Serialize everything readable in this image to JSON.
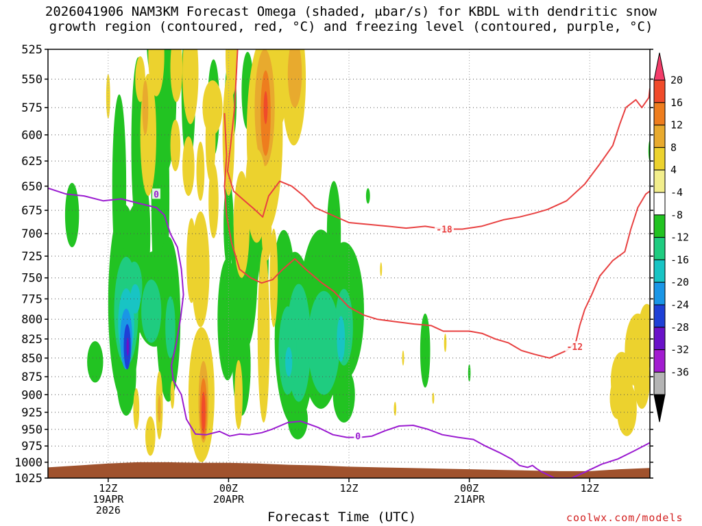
{
  "title": {
    "line1": "2026041906 NAM3KM Forecast Omega (shaded, μbar/s) for KBDL with dendritic snow",
    "line2": "growth region (contoured, red, °C) and freezing level (contoured, purple, °C)"
  },
  "chart_data": {
    "type": "contour",
    "title": "2026041906 NAM3KM Forecast Omega (shaded, μbar/s) for KBDL with dendritic snow growth region (contoured, red, °C) and freezing level (contoured, purple, °C)",
    "xlabel": "Forecast Time (UTC)",
    "ylabel": "Pressure (hPa)",
    "x_range_hours": [
      0,
      60
    ],
    "y_range_hpa": [
      525,
      1025
    ],
    "y_ticks": [
      525,
      550,
      575,
      600,
      625,
      650,
      675,
      700,
      725,
      750,
      775,
      800,
      825,
      850,
      875,
      900,
      925,
      950,
      975,
      1000,
      1025
    ],
    "x_ticks": [
      {
        "hour": 6,
        "l1": "12Z",
        "l2": "19APR",
        "l3": "2026"
      },
      {
        "hour": 18,
        "l1": "00Z",
        "l2": "20APR",
        "l3": ""
      },
      {
        "hour": 30,
        "l1": "12Z",
        "l2": "",
        "l3": ""
      },
      {
        "hour": 42,
        "l1": "00Z",
        "l2": "21APR",
        "l3": ""
      },
      {
        "hour": 54,
        "l1": "12Z",
        "l2": "",
        "l3": ""
      }
    ],
    "colorbar": {
      "labels": [
        "20",
        "16",
        "12",
        "8",
        "4",
        "-4",
        "-8",
        "-12",
        "-16",
        "-20",
        "-24",
        "-28",
        "-32",
        "-36"
      ],
      "colors": [
        "#f43d6a",
        "#f04b2a",
        "#ee7d1e",
        "#e8aa2e",
        "#ecd22e",
        "#f2ee8c",
        "#ffffff",
        "#22c322",
        "#1fcc80",
        "#18c4c4",
        "#1a96e6",
        "#1e40d6",
        "#6a12c8",
        "#a21cd0",
        "#b4b4b4",
        "#000000"
      ]
    },
    "contour_labels": [
      {
        "text": "-18",
        "hour": 39.5,
        "hpa": 695,
        "color": "#e84040"
      },
      {
        "text": "-12",
        "hour": 52.5,
        "hpa": 835,
        "color": "#e84040"
      },
      {
        "text": "0",
        "hour": 10.8,
        "hpa": 658,
        "color": "#9a1ad0"
      },
      {
        "text": "0",
        "hour": 30.9,
        "hpa": 960,
        "color": "#9a1ad0"
      }
    ],
    "dgz_upper_minus18": [
      [
        18.9,
        525
      ],
      [
        18.6,
        575
      ],
      [
        18.2,
        610
      ],
      [
        17.9,
        635
      ],
      [
        18.5,
        655
      ],
      [
        19.6,
        665
      ],
      [
        20.6,
        674
      ],
      [
        21.4,
        682
      ],
      [
        22.0,
        660
      ],
      [
        23.1,
        645
      ],
      [
        24.3,
        650
      ],
      [
        25.5,
        660
      ],
      [
        26.6,
        672
      ],
      [
        28.3,
        680
      ],
      [
        30.0,
        688
      ],
      [
        32.0,
        690
      ],
      [
        33.9,
        692
      ],
      [
        35.7,
        694
      ],
      [
        37.6,
        692
      ],
      [
        39.5,
        695
      ],
      [
        41.3,
        695
      ],
      [
        43.2,
        692
      ],
      [
        45.4,
        685
      ],
      [
        47.0,
        682
      ],
      [
        48.5,
        678
      ],
      [
        49.8,
        674
      ],
      [
        51.7,
        665
      ],
      [
        53.5,
        648
      ],
      [
        55.0,
        628
      ],
      [
        56.3,
        610
      ],
      [
        57.0,
        590
      ],
      [
        57.6,
        575
      ],
      [
        58.6,
        568
      ],
      [
        59.2,
        575
      ],
      [
        59.9,
        566
      ],
      [
        60.0,
        558
      ]
    ],
    "dgz_lower_minus12": [
      [
        17.6,
        580
      ],
      [
        17.8,
        620
      ],
      [
        17.6,
        650
      ],
      [
        17.8,
        680
      ],
      [
        18.3,
        710
      ],
      [
        19.1,
        740
      ],
      [
        20.2,
        750
      ],
      [
        21.3,
        756
      ],
      [
        22.4,
        752
      ],
      [
        23.4,
        740
      ],
      [
        24.6,
        728
      ],
      [
        25.7,
        740
      ],
      [
        27.2,
        755
      ],
      [
        28.5,
        766
      ],
      [
        30.0,
        785
      ],
      [
        31.5,
        795
      ],
      [
        32.8,
        800
      ],
      [
        34.6,
        803
      ],
      [
        36.5,
        806
      ],
      [
        38.2,
        808
      ],
      [
        39.4,
        815
      ],
      [
        40.7,
        815
      ],
      [
        42.0,
        815
      ],
      [
        43.3,
        818
      ],
      [
        44.6,
        825
      ],
      [
        45.9,
        830
      ],
      [
        47.2,
        840
      ],
      [
        48.5,
        845
      ],
      [
        50.0,
        850
      ],
      [
        51.7,
        840
      ],
      [
        52.6,
        830
      ],
      [
        53.0,
        808
      ],
      [
        53.5,
        788
      ],
      [
        54.2,
        770
      ],
      [
        55.0,
        748
      ],
      [
        56.3,
        730
      ],
      [
        57.5,
        720
      ],
      [
        58.1,
        695
      ],
      [
        58.8,
        672
      ],
      [
        59.6,
        658
      ],
      [
        60.0,
        655
      ]
    ],
    "freezing_level_0C": [
      [
        0,
        652
      ],
      [
        1.8,
        658
      ],
      [
        3.6,
        660
      ],
      [
        5.5,
        665
      ],
      [
        7.3,
        663
      ],
      [
        9.2,
        668
      ],
      [
        10.8,
        672
      ],
      [
        11.6,
        680
      ],
      [
        12.2,
        700
      ],
      [
        12.9,
        715
      ],
      [
        13.3,
        740
      ],
      [
        13.5,
        770
      ],
      [
        13.2,
        800
      ],
      [
        12.8,
        830
      ],
      [
        12.3,
        860
      ],
      [
        12.5,
        880
      ],
      [
        13.3,
        900
      ],
      [
        13.8,
        935
      ],
      [
        14.7,
        957
      ],
      [
        15.8,
        958
      ],
      [
        17.1,
        953
      ],
      [
        18.1,
        960
      ],
      [
        19.1,
        957
      ],
      [
        20.1,
        958
      ],
      [
        21.3,
        955
      ],
      [
        22.3,
        950
      ],
      [
        23.9,
        940
      ],
      [
        25.2,
        938
      ],
      [
        26.9,
        947
      ],
      [
        28.4,
        958
      ],
      [
        29.8,
        962
      ],
      [
        31.1,
        962
      ],
      [
        32.3,
        960
      ],
      [
        33.6,
        952
      ],
      [
        35.0,
        945
      ],
      [
        36.4,
        944
      ],
      [
        37.9,
        950
      ],
      [
        39.3,
        958
      ],
      [
        40.9,
        962
      ],
      [
        42.4,
        965
      ],
      [
        43.6,
        975
      ],
      [
        45.0,
        985
      ],
      [
        46.2,
        995
      ],
      [
        47.0,
        1005
      ],
      [
        47.8,
        1008
      ],
      [
        48.3,
        1005
      ],
      [
        48.7,
        1010
      ],
      [
        49.2,
        1015
      ],
      [
        50.5,
        1025
      ],
      [
        52.2,
        1025
      ],
      [
        53.6,
        1015
      ],
      [
        55.2,
        1003
      ],
      [
        56.8,
        995
      ],
      [
        58.5,
        982
      ],
      [
        60.0,
        970
      ]
    ]
  },
  "watermark": "coolwx.com/models",
  "x_axis_title": "Forecast Time (UTC)"
}
